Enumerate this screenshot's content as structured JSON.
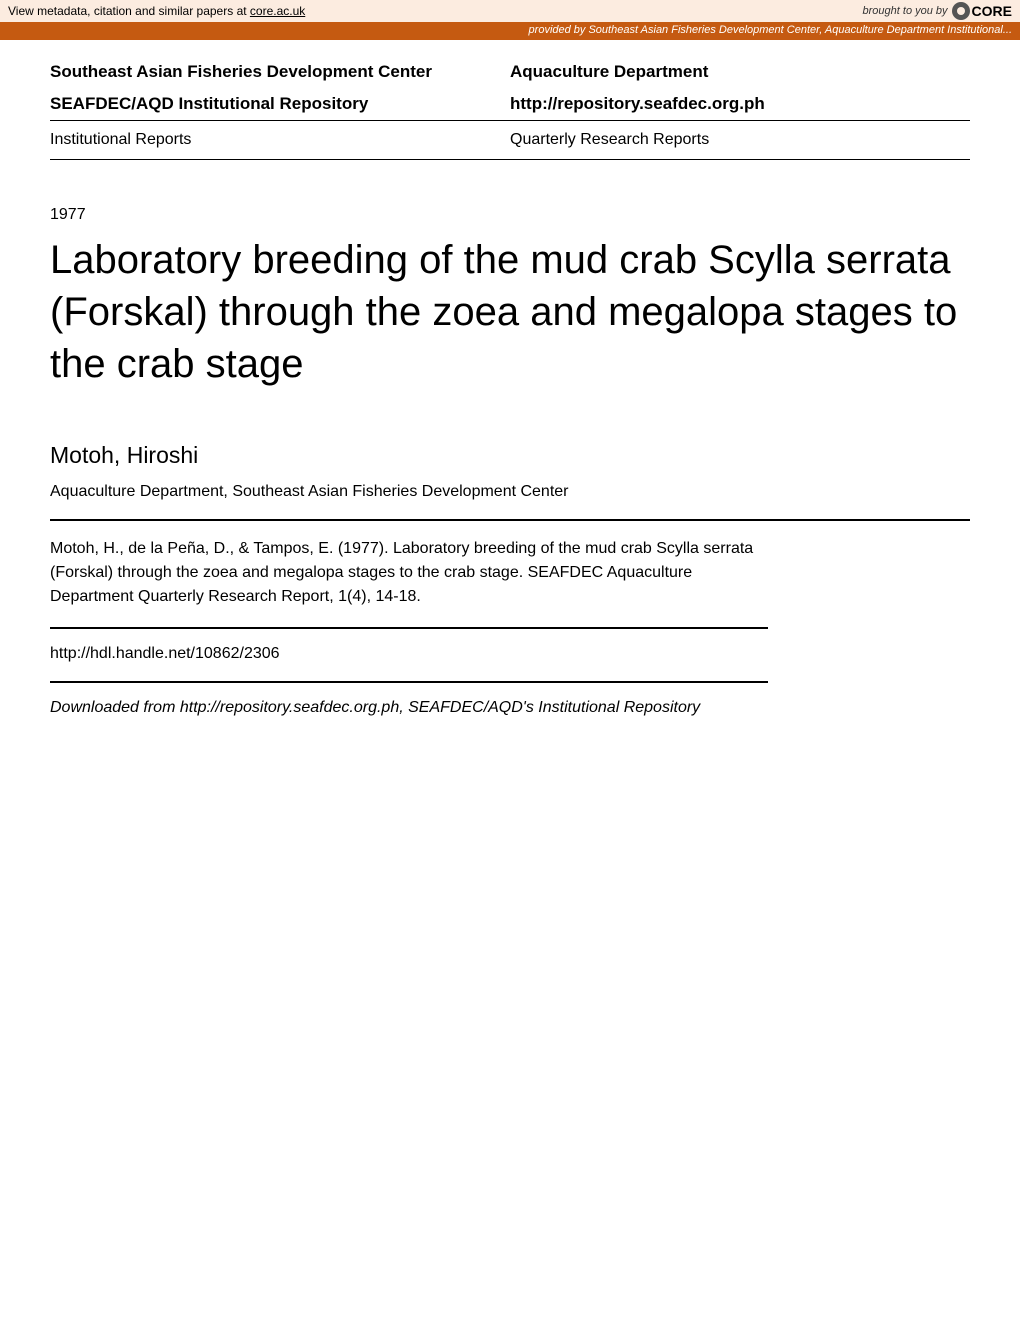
{
  "banner": {
    "left_prefix": "View metadata, citation and similar papers at ",
    "left_link": "core.ac.uk",
    "brought_by": "brought to you by ",
    "core": "CORE"
  },
  "orange_bar": {
    "text": "provided by Southeast Asian Fisheries Development Center, Aquaculture Department Institutional..."
  },
  "header": {
    "org": "Southeast Asian Fisheries Development Center",
    "dept": "Aquaculture Department",
    "repo_name": "SEAFDEC/AQD Institutional Repository",
    "repo_url": "http://repository.seafdec.org.ph",
    "series1": "Institutional Reports",
    "series2": "Quarterly Research Reports"
  },
  "year": "1977",
  "title": "Laboratory breeding of the mud crab Scylla serrata (Forskal) through the zoea and megalopa stages to the crab stage",
  "author": "Motoh, Hiroshi",
  "affiliation": "Aquaculture Department, Southeast Asian Fisheries Development Center",
  "citation": "Motoh, H., de la Peña, D., & Tampos, E. (1977). Laboratory breeding of the mud crab Scylla serrata (Forskal) through the zoea and megalopa stages to the crab stage. SEAFDEC Aquaculture Department Quarterly Research Report, 1(4), 14-18.",
  "handle": "http://hdl.handle.net/10862/2306",
  "download_note": "Downloaded from http://repository.seafdec.org.ph, SEAFDEC/AQD's Institutional Repository"
}
